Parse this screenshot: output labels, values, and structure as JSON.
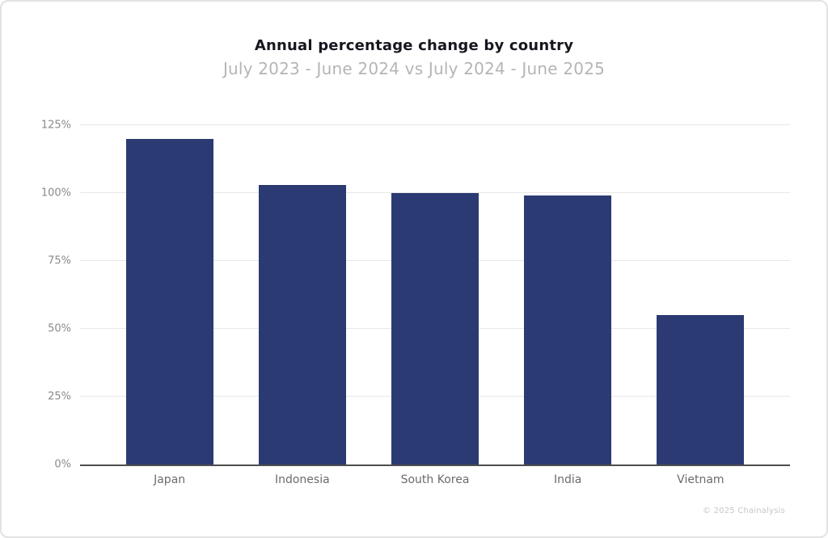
{
  "header": {
    "title": "Annual percentage change by country",
    "subtitle": "July 2023 - June 2024 vs July 2024 - June 2025"
  },
  "footer": {
    "credit": "© 2025 Chainalysis"
  },
  "colors": {
    "bar": "#2b3a72",
    "gridline": "#e7e7e7",
    "axis_line": "#4d4d4d",
    "title": "#17161f",
    "subtitle": "#b5b5b5",
    "tick_label": "#8a8a8a",
    "category_label": "#6b6b6b",
    "credit": "#c7c7c7",
    "card_border": "#e2e2e2"
  },
  "chart_data": {
    "type": "bar",
    "title": "Annual percentage change by country",
    "subtitle": "July 2023 - June 2024 vs July 2024 - June 2025",
    "categories": [
      "Japan",
      "Indonesia",
      "South Korea",
      "India",
      "Vietnam"
    ],
    "values": [
      120,
      103,
      100,
      99,
      55
    ],
    "unit": "%",
    "xlabel": "",
    "ylabel": "",
    "ylim": [
      0,
      125
    ],
    "yticks": [
      0,
      25,
      50,
      75,
      100,
      125
    ],
    "ytick_labels": [
      "0%",
      "25%",
      "50%",
      "75%",
      "100%",
      "125%"
    ],
    "grid": true,
    "legend_position": "none",
    "bar_color": "#2b3a72"
  }
}
